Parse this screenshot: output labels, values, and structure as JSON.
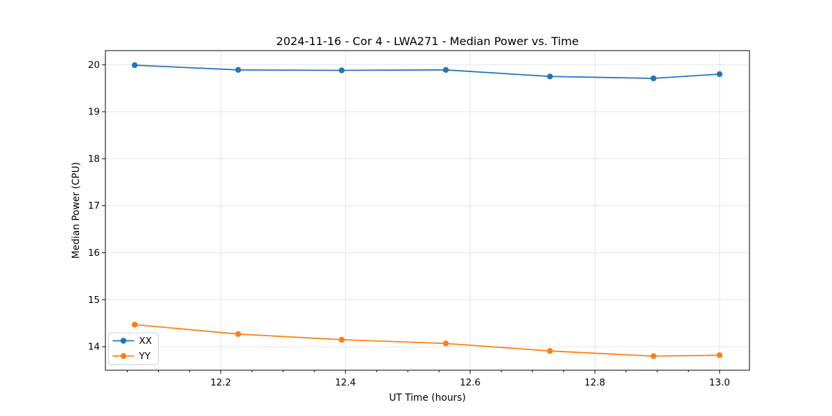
{
  "figure": {
    "background": "#ffffff",
    "spine_color": "#000000",
    "grid_color": "#e3e3e3"
  },
  "chart_data": {
    "type": "line",
    "title": "2024-11-16 - Cor 4 - LWA271 - Median Power vs. Time",
    "xlabel": "UT Time (hours)",
    "ylabel": "Median Power (CPU)",
    "xlim": [
      12.015,
      13.048
    ],
    "ylim": [
      13.5,
      20.3
    ],
    "grid": true,
    "legend_position": "lower left",
    "x": [
      12.062,
      12.228,
      12.394,
      12.561,
      12.728,
      12.894,
      13.0
    ],
    "series": [
      {
        "name": "XX",
        "color": "#1f77b4",
        "values": [
          19.99,
          19.89,
          19.88,
          19.89,
          19.75,
          19.71,
          19.8
        ]
      },
      {
        "name": "YY",
        "color": "#ff7f0e",
        "values": [
          14.47,
          14.27,
          14.15,
          14.07,
          13.91,
          13.8,
          13.82
        ]
      }
    ],
    "xticks": {
      "values": [
        12.2,
        12.4,
        12.6,
        12.8,
        13.0
      ],
      "labels": [
        "12.2",
        "12.4",
        "12.6",
        "12.8",
        "13.0"
      ]
    },
    "x_minor_ticks": [
      12.05,
      12.1,
      12.15,
      12.25,
      12.3,
      12.35,
      12.45,
      12.5,
      12.55,
      12.65,
      12.7,
      12.75,
      12.85,
      12.9,
      12.95
    ],
    "yticks": {
      "values": [
        14,
        15,
        16,
        17,
        18,
        19,
        20
      ],
      "labels": [
        "14",
        "15",
        "16",
        "17",
        "18",
        "19",
        "20"
      ]
    }
  }
}
